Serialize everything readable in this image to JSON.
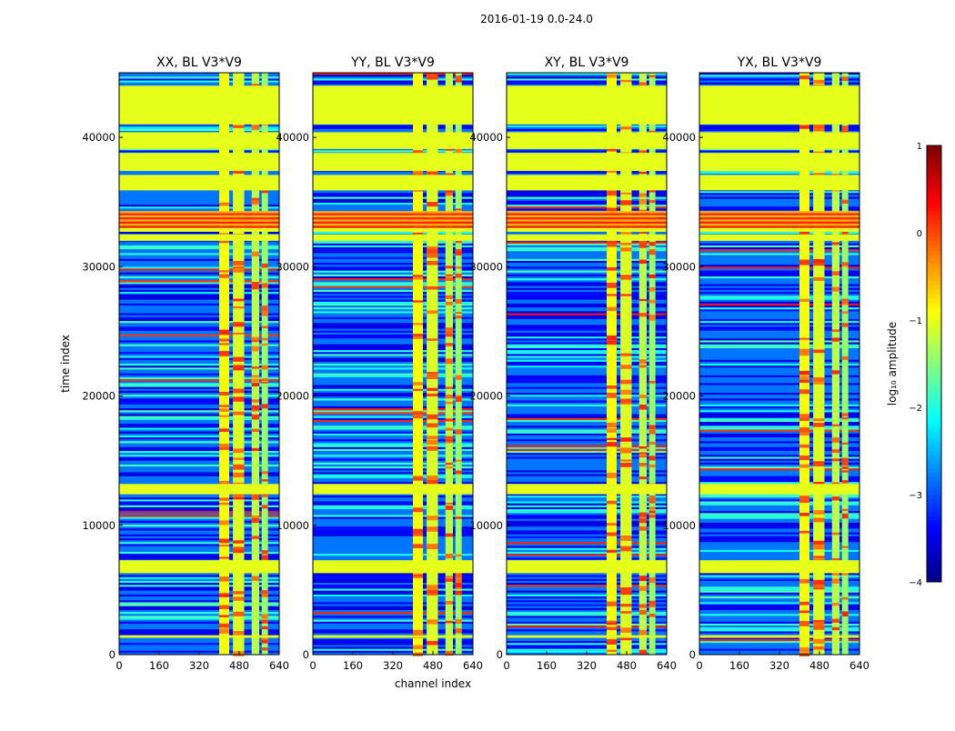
{
  "suptitle": "2016-01-19 0.0-24.0",
  "chart_data": {
    "type": "heatmap",
    "ylabel": "time index",
    "xlabel": "channel index",
    "xlim": [
      0,
      640
    ],
    "ylim": [
      0,
      45000
    ],
    "xticks": [
      0,
      160,
      320,
      480,
      640
    ],
    "yticks": [
      0,
      10000,
      20000,
      30000,
      40000
    ],
    "panels": [
      {
        "title": "XX, BL V3*V9",
        "pol": "XX",
        "show_yticks": true
      },
      {
        "title": "YY, BL V3*V9",
        "pol": "YY",
        "show_yticks": true
      },
      {
        "title": "XY, BL V3*V9",
        "pol": "XY",
        "show_yticks": true
      },
      {
        "title": "YX, BL V3*V9",
        "pol": "YX",
        "show_yticks": true
      }
    ],
    "colormap": "jet",
    "colorbar": {
      "label": "log₁₀ amplitude",
      "range": [
        -4,
        1
      ],
      "ticks": [
        1,
        0,
        -1,
        -2,
        -3,
        -4
      ]
    },
    "flagged_value": -1.0,
    "flagged_time_ranges": [
      [
        1300,
        1500
      ],
      [
        6300,
        7300
      ],
      [
        12400,
        13200
      ],
      [
        32000,
        32500
      ],
      [
        32700,
        33000
      ],
      [
        35900,
        37100
      ],
      [
        37400,
        38800
      ],
      [
        39100,
        40400
      ],
      [
        41000,
        44000
      ]
    ],
    "saturated_time_ranges": [
      [
        33000,
        34300
      ]
    ],
    "bright_channel_ranges": [
      [
        400,
        440
      ],
      [
        455,
        500
      ],
      [
        530,
        560
      ],
      [
        570,
        595
      ]
    ],
    "noise_floor_log_amplitude": -3.0
  }
}
